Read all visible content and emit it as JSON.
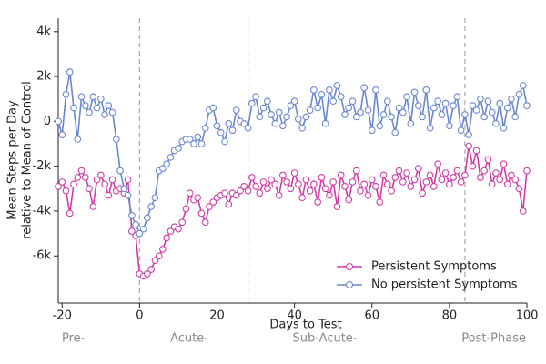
{
  "chart_data": {
    "type": "line",
    "xlabel": "Days to Test",
    "ylabel": [
      "Mean Steps per Day",
      "relative to Mean of Control"
    ],
    "phases": [
      "Pre-",
      "Acute-",
      "Sub-Acute-",
      "Post-Phase"
    ],
    "vlines": [
      0,
      28,
      84
    ],
    "xlim": [
      -21,
      100
    ],
    "xticks": [
      -20,
      0,
      20,
      40,
      60,
      80,
      100
    ],
    "ylim": [
      -8100,
      4600
    ],
    "yticks": [
      {
        "value": -6000,
        "label": "-6k"
      },
      {
        "value": -4000,
        "label": "-4k"
      },
      {
        "value": -2000,
        "label": "-2k"
      },
      0,
      {
        "value": 2000,
        "label": "2k"
      },
      {
        "value": 4000,
        "label": "4k"
      }
    ],
    "legend": "lower right",
    "x": [
      -21,
      -20,
      -19,
      -18,
      -17,
      -16,
      -15,
      -14,
      -13,
      -12,
      -11,
      -10,
      -9,
      -8,
      -7,
      -6,
      -5,
      -4,
      -3,
      -2,
      -1,
      0,
      1,
      2,
      3,
      4,
      5,
      6,
      7,
      8,
      9,
      10,
      11,
      12,
      13,
      14,
      15,
      16,
      17,
      18,
      19,
      20,
      21,
      22,
      23,
      24,
      25,
      26,
      27,
      28,
      29,
      30,
      31,
      32,
      33,
      34,
      35,
      36,
      37,
      38,
      39,
      40,
      41,
      42,
      43,
      44,
      45,
      46,
      47,
      48,
      49,
      50,
      51,
      52,
      53,
      54,
      55,
      56,
      57,
      58,
      59,
      60,
      61,
      62,
      63,
      64,
      65,
      66,
      67,
      68,
      69,
      70,
      71,
      72,
      73,
      74,
      75,
      76,
      77,
      78,
      79,
      80,
      81,
      82,
      83,
      84,
      85,
      86,
      87,
      88,
      89,
      90,
      91,
      92,
      93,
      94,
      95,
      96,
      97,
      98,
      99,
      100
    ],
    "series": [
      {
        "name": "Persistent Symptoms",
        "color": "#d03ca6",
        "values": [
          -2900,
          -2700,
          -3100,
          -4100,
          -2800,
          -2500,
          -2200,
          -2500,
          -3000,
          -3800,
          -2600,
          -2400,
          -2800,
          -3300,
          -2600,
          -3100,
          -3000,
          -3200,
          -2600,
          -4900,
          -5100,
          -6800,
          -6900,
          -6800,
          -6600,
          -6200,
          -6000,
          -5700,
          -5200,
          -4900,
          -4700,
          -4800,
          -4500,
          -3900,
          -3200,
          -3500,
          -3400,
          -4100,
          -4500,
          -3800,
          -3600,
          -3400,
          -3300,
          -3200,
          -3700,
          -3200,
          -3300,
          -3100,
          -2900,
          -3100,
          -2500,
          -2900,
          -3200,
          -2700,
          -3000,
          -2600,
          -2800,
          -3300,
          -2400,
          -2700,
          -3000,
          -2300,
          -2800,
          -3400,
          -2600,
          -3100,
          -2800,
          -3600,
          -2500,
          -3000,
          -3300,
          -2700,
          -3800,
          -2400,
          -2900,
          -3500,
          -2700,
          -2200,
          -3100,
          -2800,
          -3300,
          -2600,
          -2900,
          -3600,
          -2400,
          -2800,
          -3100,
          -2500,
          -2200,
          -2700,
          -2300,
          -2900,
          -2600,
          -2100,
          -3200,
          -2700,
          -2400,
          -2900,
          -1900,
          -2600,
          -2300,
          -2800,
          -2500,
          -2200,
          -2700,
          -2400,
          -1100,
          -2000,
          -1300,
          -2500,
          -2200,
          -1700,
          -2800,
          -2300,
          -2600,
          -1900,
          -2800,
          -2400,
          -2600,
          -3000,
          -4000,
          -2200
        ]
      },
      {
        "name": "No persistent Symptoms",
        "color": "#6a87d2",
        "values": [
          0,
          -600,
          1200,
          2200,
          600,
          -800,
          1100,
          700,
          400,
          1100,
          600,
          1000,
          300,
          700,
          400,
          -800,
          -2200,
          -3000,
          -3300,
          -4200,
          -4600,
          -5000,
          -4800,
          -4300,
          -3800,
          -3400,
          -2200,
          -2100,
          -1900,
          -1600,
          -1300,
          -1200,
          -900,
          -800,
          -800,
          -1000,
          -700,
          -1000,
          -300,
          500,
          600,
          -200,
          -500,
          -900,
          -100,
          -400,
          500,
          0,
          -100,
          -300,
          800,
          1100,
          200,
          600,
          900,
          300,
          -100,
          400,
          -200,
          200,
          700,
          900,
          100,
          -300,
          200,
          500,
          1400,
          600,
          1200,
          -100,
          1400,
          900,
          1600,
          1100,
          300,
          600,
          900,
          200,
          400,
          1500,
          500,
          -400,
          1400,
          -200,
          300,
          900,
          200,
          -500,
          600,
          400,
          1100,
          -100,
          1300,
          700,
          200,
          1400,
          -300,
          600,
          900,
          300,
          800,
          -200,
          700,
          1100,
          -400,
          300,
          -600,
          700,
          500,
          1000,
          200,
          900,
          400,
          -100,
          800,
          -300,
          600,
          1000,
          200,
          1200,
          1600,
          700
        ]
      }
    ]
  }
}
